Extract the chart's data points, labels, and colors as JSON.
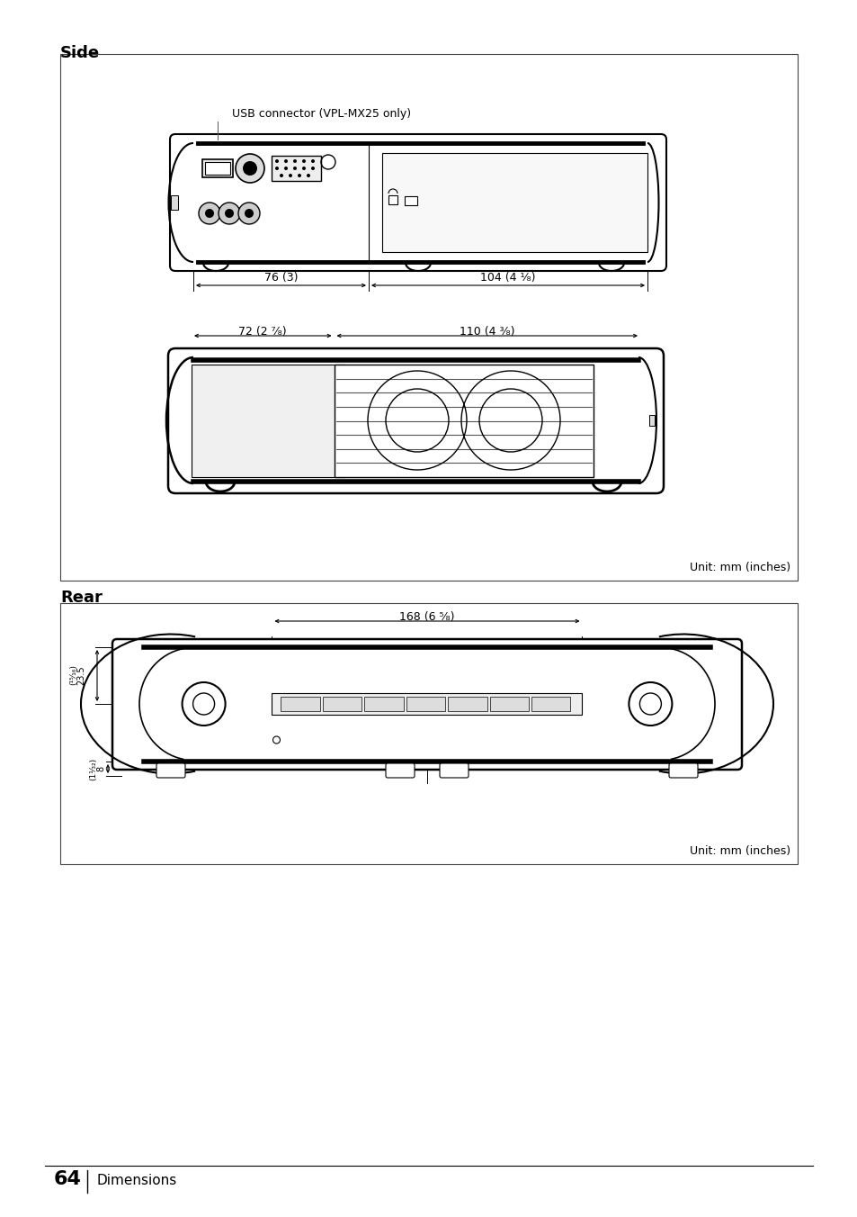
{
  "bg_color": "#ffffff",
  "text_color": "#000000",
  "section_side_label": "Side",
  "section_rear_label": "Rear",
  "unit_label": "Unit: mm (inches)",
  "usb_label": "USB connector (VPL-MX25 only)",
  "dim1_label": "76 (3)",
  "dim2_label": "104 (4 ¹⁄₈)",
  "dim3_label": "72 (2 ⁷⁄₈)",
  "dim4_label": "110 (4 ³⁄₈)",
  "dim5_label": "168 (6 ⁵⁄₈)",
  "dim6_label": "23.5",
  "dim6b_label": "(¹⁵⁄₁₆)",
  "dim7_label": "8",
  "dim7b_label": "(1¹⁄₃₂)",
  "page_num": "64",
  "page_section": "Dimensions"
}
